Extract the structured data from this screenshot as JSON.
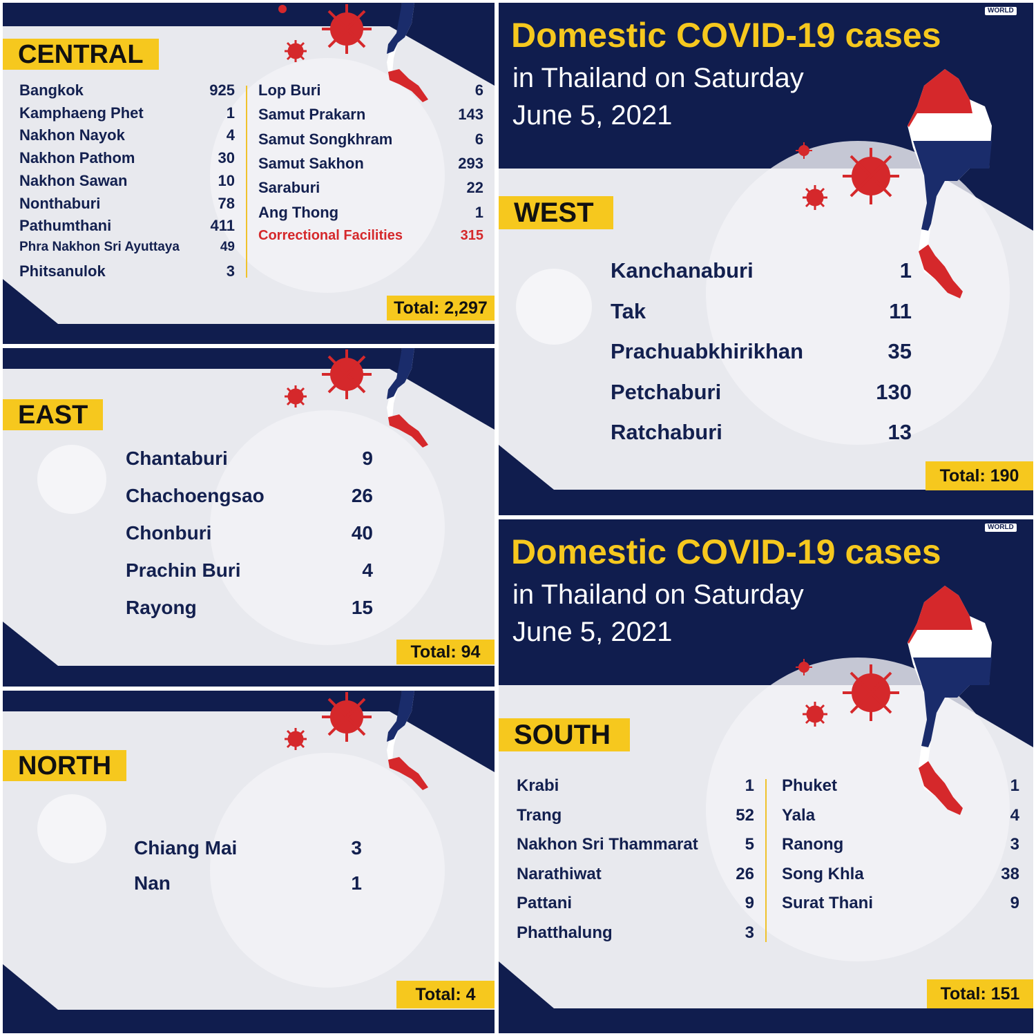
{
  "colors": {
    "navy": "#101d4e",
    "yellow": "#f6c81e",
    "red": "#d5282b",
    "text": "#13204f"
  },
  "central": {
    "title": "CENTRAL",
    "left": [
      {
        "name": "Bangkok",
        "value": "925"
      },
      {
        "name": "Kamphaeng Phet",
        "value": "1"
      },
      {
        "name": "Nakhon Nayok",
        "value": "4"
      },
      {
        "name": "Nakhon Pathom",
        "value": "30"
      },
      {
        "name": "Nakhon Sawan",
        "value": "10"
      },
      {
        "name": "Nonthaburi",
        "value": "78"
      },
      {
        "name": "Pathumthani",
        "value": "411"
      },
      {
        "name": "Phra Nakhon Sri Ayuttaya",
        "value": "49"
      },
      {
        "name": "Phitsanulok",
        "value": "3"
      }
    ],
    "right": [
      {
        "name": "Lop Buri",
        "value": "6"
      },
      {
        "name": "Samut Prakarn",
        "value": "143"
      },
      {
        "name": "Samut Songkhram",
        "value": "6"
      },
      {
        "name": "Samut Sakhon",
        "value": "293"
      },
      {
        "name": "Saraburi",
        "value": "22"
      },
      {
        "name": "Ang Thong",
        "value": "1"
      },
      {
        "name": "Correctional Facilities",
        "value": "315"
      }
    ],
    "total": "Total: 2,297"
  },
  "east": {
    "title": "EAST",
    "rows": [
      {
        "name": "Chantaburi",
        "value": "9"
      },
      {
        "name": "Chachoengsao",
        "value": "26"
      },
      {
        "name": "Chonburi",
        "value": "40"
      },
      {
        "name": "Prachin Buri",
        "value": "4"
      },
      {
        "name": "Rayong",
        "value": "15"
      }
    ],
    "total": "Total: 94"
  },
  "north": {
    "title": "NORTH",
    "rows": [
      {
        "name": "Chiang Mai",
        "value": "3"
      },
      {
        "name": "Nan",
        "value": "1"
      }
    ],
    "total": "Total: 4"
  },
  "header": {
    "title": "Domestic COVID-19 cases",
    "line1": "in Thailand on Saturday",
    "line2": "June 5, 2021",
    "logo": "WORLD"
  },
  "west": {
    "title": "WEST",
    "rows": [
      {
        "name": "Kanchanaburi",
        "value": "1"
      },
      {
        "name": "Tak",
        "value": "11"
      },
      {
        "name": "Prachuabkhirikhan",
        "value": "35"
      },
      {
        "name": "Petchaburi",
        "value": "130"
      },
      {
        "name": "Ratchaburi",
        "value": "13"
      }
    ],
    "total": "Total: 190"
  },
  "south": {
    "title": "SOUTH",
    "left": [
      {
        "name": "Krabi",
        "value": "1"
      },
      {
        "name": "Trang",
        "value": "52"
      },
      {
        "name": "Nakhon Sri Thammarat",
        "value": "5"
      },
      {
        "name": "Narathiwat",
        "value": "26"
      },
      {
        "name": "Pattani",
        "value": "9"
      },
      {
        "name": "Phatthalung",
        "value": "3"
      }
    ],
    "right": [
      {
        "name": "Phuket",
        "value": "1"
      },
      {
        "name": "Yala",
        "value": "4"
      },
      {
        "name": "Ranong",
        "value": "3"
      },
      {
        "name": "Song Khla",
        "value": "38"
      },
      {
        "name": "Surat Thani",
        "value": "9"
      }
    ],
    "total": "Total: 151"
  }
}
